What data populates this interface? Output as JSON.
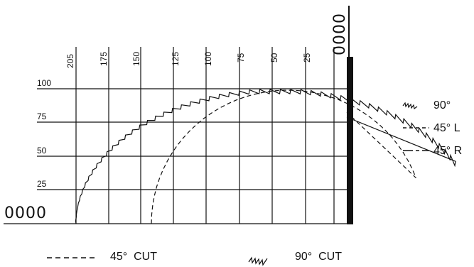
{
  "chart_data": {
    "type": "line",
    "x_ticks": [
      "205",
      "175",
      "150",
      "125",
      "100",
      "75",
      "50",
      "25"
    ],
    "y_ticks": [
      "100",
      "75",
      "50",
      "25"
    ],
    "corner_labels": {
      "origin": "0000",
      "top": "0000"
    },
    "series": [
      {
        "name": "90°",
        "style": "serrated"
      },
      {
        "name": "45° L",
        "style": "dashed"
      },
      {
        "name": "45° R",
        "style": "dash-dot"
      }
    ],
    "bottom_legend": {
      "cut45": "45°  CUT",
      "cut90": "90°  CUT"
    }
  },
  "colors": {
    "ink": "#111111",
    "background": "#ffffff"
  }
}
